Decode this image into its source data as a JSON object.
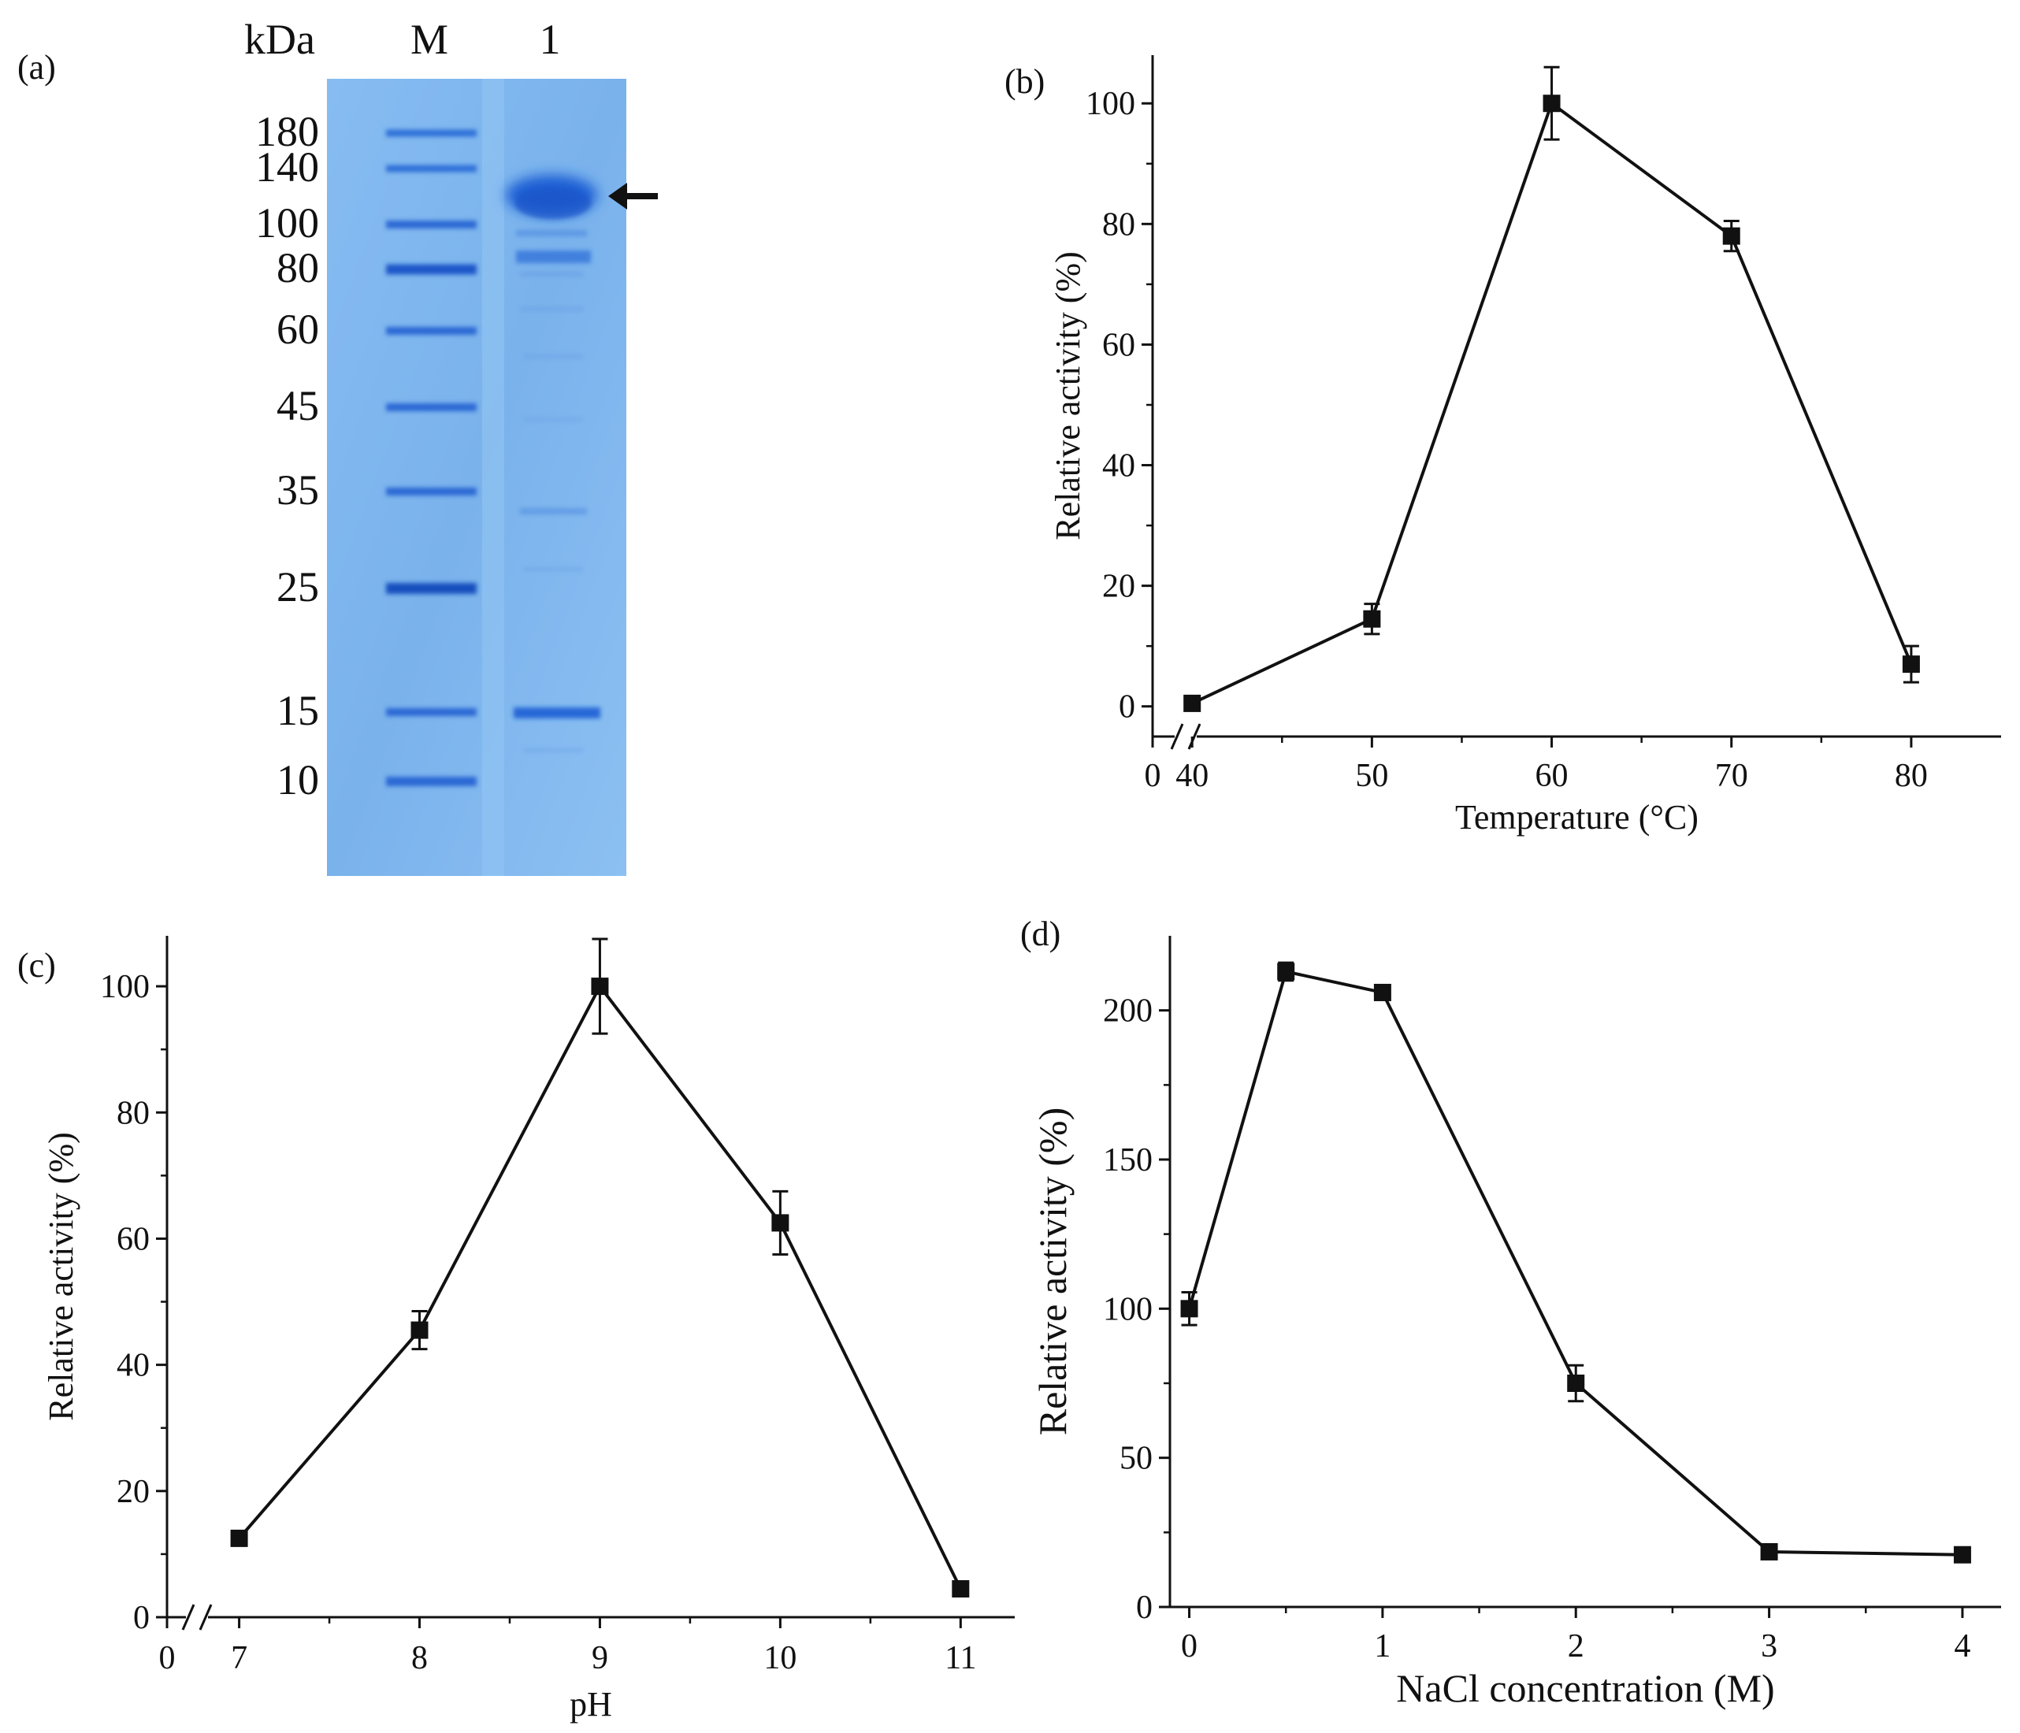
{
  "panels": {
    "a": {
      "label": "(a)",
      "unit_header": "kDa",
      "lane_labels": [
        "M",
        "1"
      ],
      "marker_kda": [
        180,
        140,
        100,
        80,
        60,
        45,
        35,
        25,
        15,
        10
      ]
    },
    "b": {
      "label": "(b)"
    },
    "c": {
      "label": "(c)"
    },
    "d": {
      "label": "(d)"
    }
  },
  "colors": {
    "gel_background": "#7eb6ee",
    "band": "#1f5fd4",
    "line": "#111111"
  },
  "chart_data": [
    {
      "panel": "b",
      "type": "line",
      "title": "",
      "xlabel": "Temperature (°C)",
      "ylabel": "Relative activity (%)",
      "x": [
        40,
        50,
        60,
        70,
        80
      ],
      "values": [
        0.5,
        14.5,
        100,
        78,
        7
      ],
      "errors": [
        0.5,
        2.5,
        6,
        2.5,
        3
      ],
      "xticks": [
        40,
        50,
        60,
        70,
        80
      ],
      "xtick_labels": [
        "40",
        "50",
        "60",
        "70",
        "80"
      ],
      "axis_break": true,
      "break_origin_label": "0",
      "xlim": [
        37.8,
        85
      ],
      "yticks": [
        0,
        20,
        40,
        60,
        80,
        100
      ],
      "ytick_labels": [
        "0",
        "20",
        "40",
        "60",
        "80",
        "100"
      ],
      "ylim": [
        -5,
        108
      ]
    },
    {
      "panel": "c",
      "type": "line",
      "title": "",
      "xlabel": "pH",
      "ylabel": "Relative activity (%)",
      "x": [
        7,
        8,
        9,
        10,
        11
      ],
      "values": [
        12.5,
        45.5,
        100,
        62.5,
        4.5
      ],
      "errors": [
        0.8,
        3,
        7.5,
        5,
        0.8
      ],
      "xticks": [
        7,
        8,
        9,
        10,
        11
      ],
      "xtick_labels": [
        "7",
        "8",
        "9",
        "10",
        "11"
      ],
      "axis_break": true,
      "break_origin_label": "0",
      "xlim": [
        6.6,
        11.3
      ],
      "yticks": [
        0,
        20,
        40,
        60,
        80,
        100
      ],
      "ytick_labels": [
        "0",
        "20",
        "40",
        "60",
        "80",
        "100"
      ],
      "ylim": [
        0,
        108
      ]
    },
    {
      "panel": "d",
      "type": "line",
      "title": "",
      "xlabel": "NaCl concentration (M)",
      "ylabel": "Relative activity (%)",
      "x": [
        0,
        0.5,
        1,
        2,
        3,
        4
      ],
      "values": [
        100,
        213,
        206,
        75,
        18.5,
        17.5
      ],
      "errors": [
        5.5,
        3,
        1.5,
        6,
        1,
        1
      ],
      "xticks": [
        0,
        1,
        2,
        3,
        4
      ],
      "xtick_labels": [
        "0",
        "1",
        "2",
        "3",
        "4"
      ],
      "axis_break": false,
      "xlim": [
        -0.1,
        4.2
      ],
      "yticks": [
        0,
        50,
        100,
        150,
        200
      ],
      "ytick_labels": [
        "0",
        "50",
        "100",
        "150",
        "200"
      ],
      "ylim": [
        0,
        225
      ]
    }
  ]
}
